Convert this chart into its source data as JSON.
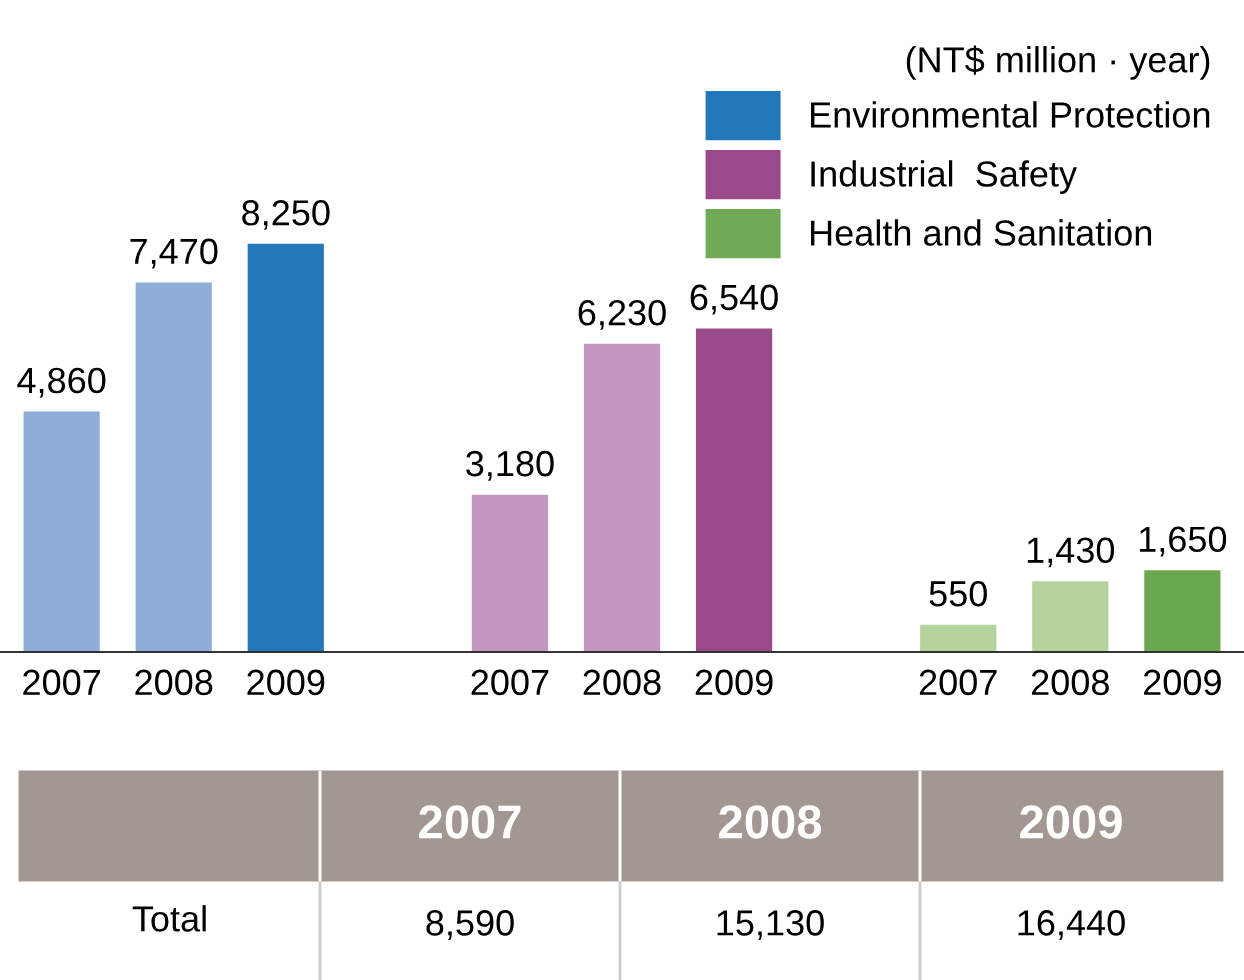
{
  "chart_data": {
    "type": "bar",
    "legend_title": "(NT$ million · year)",
    "legend": "top right",
    "categories": [
      "2007",
      "2008",
      "2009",
      null,
      "2007",
      "2008",
      "2009",
      null,
      "2007",
      "2008",
      "2009"
    ],
    "series": [
      {
        "name": "Environmental Protection",
        "color": "#2278b8",
        "colors": [
          "#8eaed8",
          "#8eaed8",
          "#2278b8",
          null,
          null,
          null,
          null,
          null,
          null,
          null,
          null
        ],
        "values": [
          4860,
          7470,
          8250,
          null,
          null,
          null,
          null,
          null,
          null,
          null,
          null
        ],
        "value_labels": [
          "4,860",
          "7,470",
          "8,250",
          null,
          null,
          null,
          null,
          null,
          null,
          null,
          null
        ]
      },
      {
        "name": "Industrial  Safety",
        "color": "#994a8b",
        "colors": [
          null,
          null,
          null,
          null,
          "#c397c0",
          "#c397c0",
          "#994a8b",
          null,
          null,
          null,
          null
        ],
        "values": [
          null,
          null,
          null,
          null,
          3180,
          6230,
          6540,
          null,
          null,
          null,
          null
        ],
        "value_labels": [
          null,
          null,
          null,
          null,
          "3,180",
          "6,230",
          "6,540",
          null,
          null,
          null,
          null
        ]
      },
      {
        "name": "Health and Sanitation",
        "color": "#6fab57",
        "colors": [
          null,
          null,
          null,
          null,
          null,
          null,
          null,
          null,
          "#b5d49d",
          "#b5d49d",
          "#6aa84f"
        ],
        "values": [
          null,
          null,
          null,
          null,
          null,
          null,
          null,
          null,
          550,
          1430,
          1650
        ],
        "value_labels": [
          null,
          null,
          null,
          null,
          null,
          null,
          null,
          null,
          "550",
          "1,430",
          "1,650"
        ]
      }
    ],
    "annotations": [
      "2007",
      "2008",
      "2009",
      "Total",
      "8,590",
      "15,130",
      "16,440"
    ]
  }
}
